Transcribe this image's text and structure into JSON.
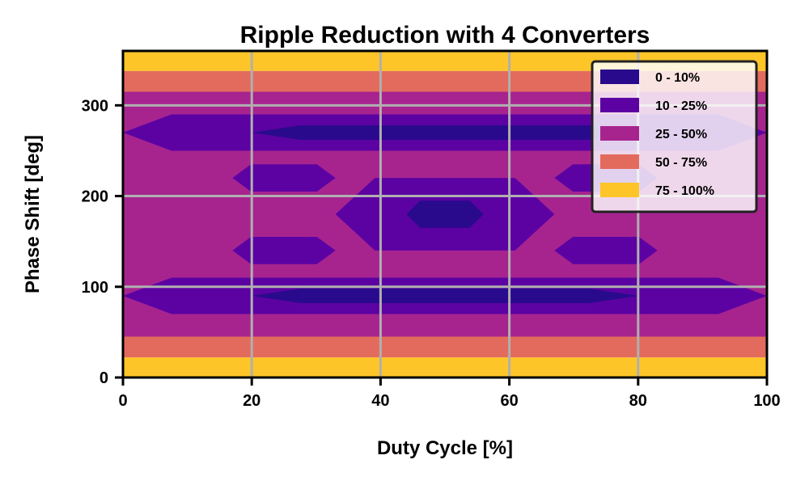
{
  "chart_data": {
    "type": "heatmap",
    "title": "Ripple Reduction with 4 Converters",
    "xlabel": "Duty Cycle [%]",
    "ylabel": "Phase Shift [deg]",
    "xlim": [
      0,
      100
    ],
    "ylim": [
      0,
      360
    ],
    "xticks": [
      "0",
      "20",
      "40",
      "60",
      "80",
      "100"
    ],
    "yticks": [
      "0",
      "100",
      "200",
      "300"
    ],
    "grid": true,
    "legend_placement": "top-right",
    "levels": [
      {
        "label": "0 - 10%",
        "min": 0,
        "max": 10,
        "color": "#2a0a8c"
      },
      {
        "label": "10 - 25%",
        "min": 10,
        "max": 25,
        "color": "#5c02a3"
      },
      {
        "label": "25 - 50%",
        "min": 25,
        "max": 50,
        "color": "#a7248f"
      },
      {
        "label": "50 - 75%",
        "min": 50,
        "max": 75,
        "color": "#e36b5d"
      },
      {
        "label": "75 - 100%",
        "min": 75,
        "max": 100,
        "color": "#fdc527"
      }
    ],
    "regions": [
      {
        "level": "25 - 50%",
        "x": [
          0,
          100
        ],
        "y": [
          45,
          315
        ]
      },
      {
        "level": "50 - 75%",
        "x": [
          0,
          100
        ],
        "y": [
          22,
          45
        ]
      },
      {
        "level": "50 - 75%",
        "x": [
          0,
          100
        ],
        "y": [
          315,
          338
        ]
      },
      {
        "level": "75 - 100%",
        "x": [
          0,
          100
        ],
        "y": [
          0,
          22
        ]
      },
      {
        "level": "75 - 100%",
        "x": [
          0,
          100
        ],
        "y": [
          338,
          360
        ]
      },
      {
        "level": "10 - 25%",
        "x": [
          0,
          100
        ],
        "y": [
          70,
          110
        ]
      },
      {
        "level": "10 - 25%",
        "x": [
          0,
          100
        ],
        "y": [
          250,
          290
        ]
      },
      {
        "level": "10 - 25%",
        "x": [
          33,
          67
        ],
        "y": [
          140,
          220
        ]
      },
      {
        "level": "10 - 25%",
        "x": [
          17,
          33
        ],
        "y": [
          125,
          155
        ]
      },
      {
        "level": "10 - 25%",
        "x": [
          67,
          83
        ],
        "y": [
          125,
          155
        ]
      },
      {
        "level": "10 - 25%",
        "x": [
          17,
          33
        ],
        "y": [
          205,
          235
        ]
      },
      {
        "level": "10 - 25%",
        "x": [
          67,
          83
        ],
        "y": [
          205,
          235
        ]
      },
      {
        "level": "0 - 10%",
        "x": [
          20,
          80
        ],
        "y": [
          82,
          98
        ]
      },
      {
        "level": "0 - 10%",
        "x": [
          20,
          80
        ],
        "y": [
          262,
          278
        ]
      },
      {
        "level": "0 - 10%",
        "x": [
          44,
          56
        ],
        "y": [
          165,
          195
        ]
      }
    ]
  }
}
